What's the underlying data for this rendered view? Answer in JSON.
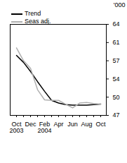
{
  "chart_data": {
    "type": "line",
    "y_label": "'000",
    "categories": [
      "Oct\n2003",
      null,
      "Dec",
      null,
      "Feb\n2004",
      null,
      "Apr",
      null,
      "Jun",
      null,
      "Aug",
      null,
      "Oct"
    ],
    "series": [
      {
        "name": "Trend",
        "color": "#000000",
        "values": [
          58.2,
          56.9,
          55.2,
          53.3,
          51.5,
          49.8,
          49.3,
          49.0,
          48.9,
          48.9,
          48.9,
          49.0,
          49.1
        ]
      },
      {
        "name": "Seas adj.",
        "color": "#b0b0b0",
        "values": [
          59.6,
          57.2,
          55.8,
          51.8,
          49.9,
          49.8,
          49.8,
          49.1,
          48.4,
          49.3,
          49.4,
          49.2,
          49.1
        ]
      }
    ],
    "ylim": [
      47,
      64
    ],
    "yticks": [
      {
        "value": 47,
        "label": "47"
      },
      {
        "value": 50.4,
        "label": "50"
      },
      {
        "value": 53.8,
        "label": "54"
      },
      {
        "value": 57.2,
        "label": "57"
      },
      {
        "value": 60.6,
        "label": "61"
      },
      {
        "value": 64,
        "label": "64"
      }
    ],
    "legend": "top-left",
    "grid": false
  }
}
